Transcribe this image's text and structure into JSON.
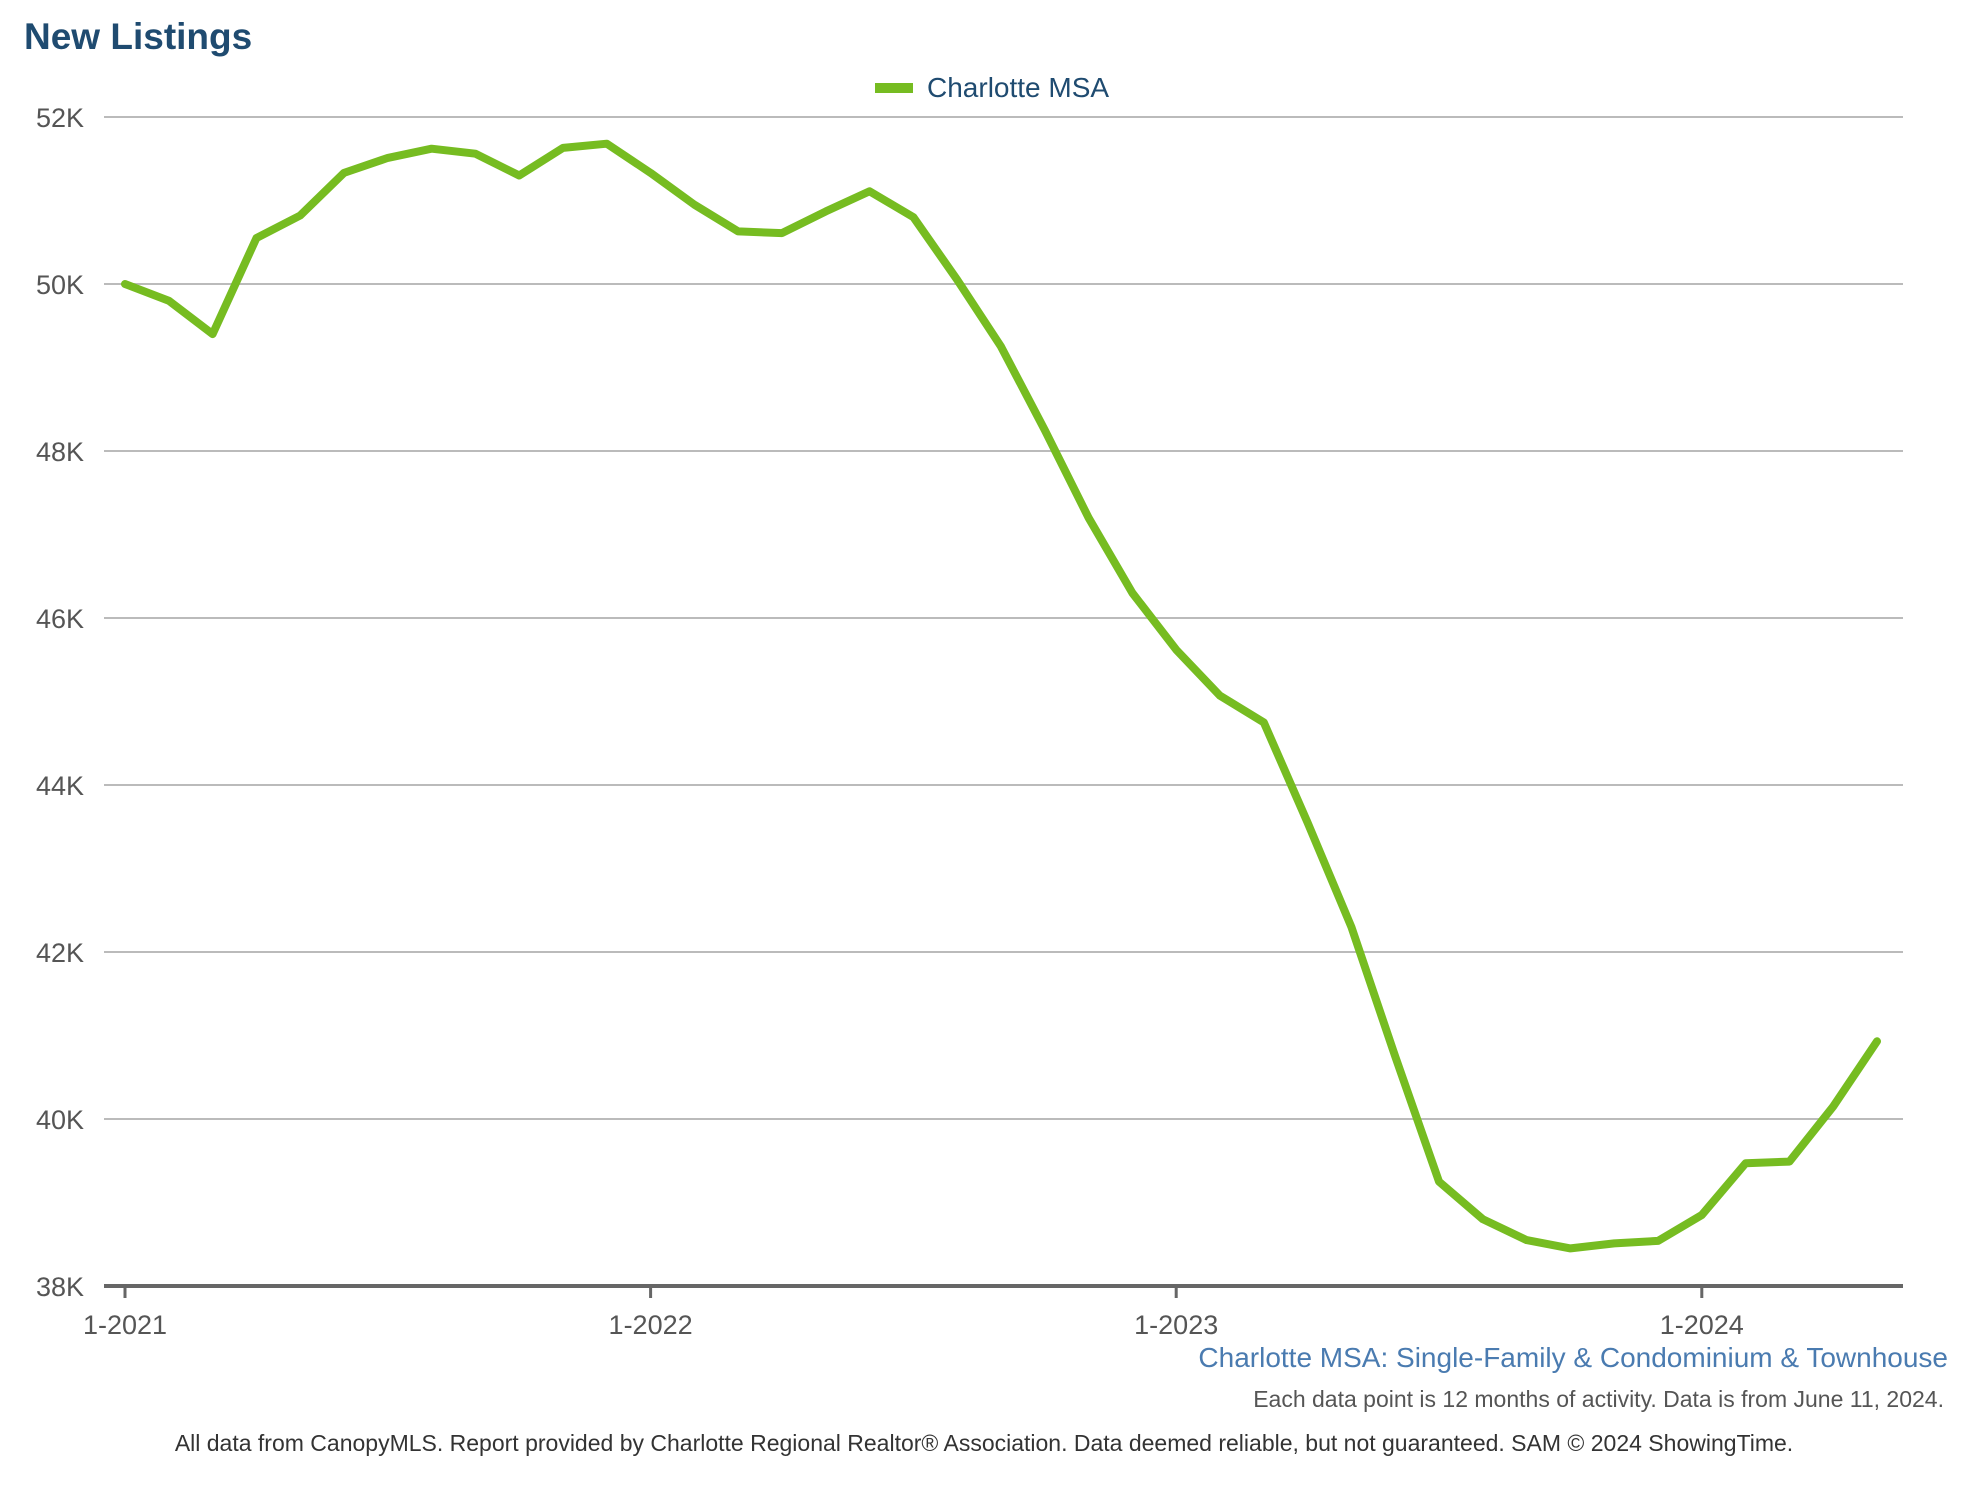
{
  "title": "New Listings",
  "subtitle": "Charlotte MSA: Single-Family & Condominium & Townhouse",
  "note": "Each data point is 12 months of activity. Data is from June 11, 2024.",
  "footer": "All data from CanopyMLS. Report provided by Charlotte Regional Realtor® Association. Data deemed reliable, but not guaranteed. SAM © 2024 ShowingTime.",
  "colors": {
    "series": "#76bc21",
    "title": "#1f4b70",
    "subtitle": "#4a7bb0",
    "grid": "#bbbbbb",
    "axis": "#666666"
  },
  "chart_data": {
    "type": "line",
    "title": "New Listings",
    "legend": "top-center",
    "grid": true,
    "ylim": [
      38000,
      52000
    ],
    "y_ticks": [
      {
        "value": 38000,
        "label": "38K"
      },
      {
        "value": 40000,
        "label": "40K"
      },
      {
        "value": 42000,
        "label": "42K"
      },
      {
        "value": 44000,
        "label": "44K"
      },
      {
        "value": 46000,
        "label": "46K"
      },
      {
        "value": 48000,
        "label": "48K"
      },
      {
        "value": 50000,
        "label": "50K"
      },
      {
        "value": 52000,
        "label": "52K"
      }
    ],
    "x_ticks": [
      {
        "date": "2021-01",
        "label": "1-2021"
      },
      {
        "date": "2022-01",
        "label": "1-2022"
      },
      {
        "date": "2023-01",
        "label": "1-2023"
      },
      {
        "date": "2024-01",
        "label": "1-2024"
      }
    ],
    "x": [
      "2021-01",
      "2021-02",
      "2021-03",
      "2021-04",
      "2021-05",
      "2021-06",
      "2021-07",
      "2021-08",
      "2021-09",
      "2021-10",
      "2021-11",
      "2021-12",
      "2022-01",
      "2022-02",
      "2022-03",
      "2022-04",
      "2022-05",
      "2022-06",
      "2022-07",
      "2022-08",
      "2022-09",
      "2022-10",
      "2022-11",
      "2022-12",
      "2023-01",
      "2023-02",
      "2023-03",
      "2023-04",
      "2023-05",
      "2023-06",
      "2023-07",
      "2023-08",
      "2023-09",
      "2023-10",
      "2023-11",
      "2023-12",
      "2024-01",
      "2024-02",
      "2024-03",
      "2024-04",
      "2024-05"
    ],
    "series": [
      {
        "name": "Charlotte MSA",
        "values": [
          50000,
          49800,
          49400,
          50550,
          50820,
          51330,
          51510,
          51620,
          51560,
          51300,
          51630,
          51680,
          51330,
          50950,
          50630,
          50610,
          50870,
          51110,
          50800,
          50050,
          49250,
          48250,
          47200,
          46300,
          45620,
          45070,
          44750,
          43550,
          42300,
          40750,
          39250,
          38800,
          38550,
          38450,
          38510,
          38540,
          38850,
          39470,
          39490,
          40150,
          40930
        ]
      }
    ]
  }
}
